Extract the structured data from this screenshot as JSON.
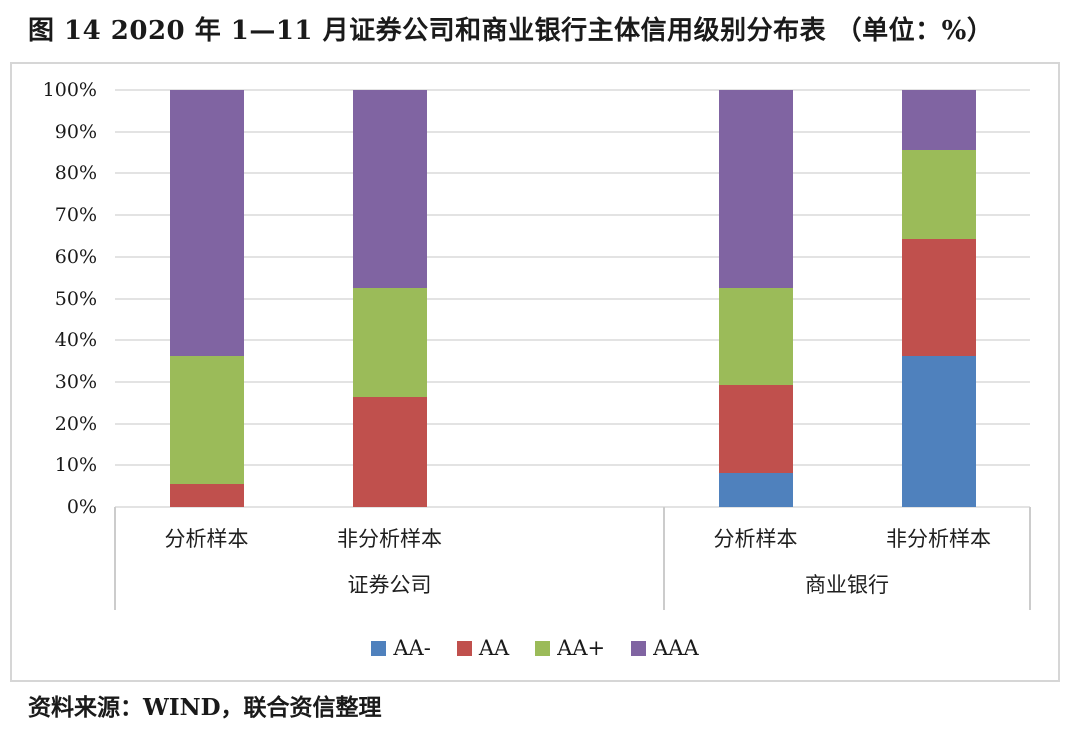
{
  "title": "图 14  2020 年 1—11 月证券公司和商业银行主体信用级别分布表 （单位：%）",
  "footer": {
    "source": "资料来源：WIND，联合资信整理"
  },
  "chart_data": {
    "type": "bar",
    "stacked": true,
    "percent_stacked": true,
    "title": "2020 年 1—11 月证券公司和商业银行主体信用级别分布表",
    "unit": "%",
    "groups": [
      {
        "label": "证券公司",
        "categories": [
          "分析样本",
          "非分析样本"
        ]
      },
      {
        "label": "商业银行",
        "categories": [
          "分析样本",
          "非分析样本"
        ]
      }
    ],
    "series": [
      {
        "name": "AA-",
        "color": "#4F81BD",
        "values": [
          0,
          0,
          8.2,
          36.3
        ]
      },
      {
        "name": "AA",
        "color": "#C0504D",
        "values": [
          5.5,
          26.3,
          21.1,
          28.0
        ]
      },
      {
        "name": "AA+",
        "color": "#9BBB59",
        "values": [
          30.8,
          26.3,
          23.2,
          21.4
        ]
      },
      {
        "name": "AAA",
        "color": "#8064A2",
        "values": [
          63.7,
          47.4,
          47.5,
          14.3
        ]
      }
    ],
    "xlabel": "",
    "ylabel": "",
    "ylim": [
      0,
      100
    ],
    "y_ticks": [
      "0%",
      "10%",
      "20%",
      "30%",
      "40%",
      "50%",
      "60%",
      "70%",
      "80%",
      "90%",
      "100%"
    ],
    "grid": true,
    "legend_position": "bottom",
    "bar_centers_pct": [
      10,
      30,
      70,
      90
    ],
    "group_divider_pcts": [
      0,
      60,
      100
    ]
  }
}
